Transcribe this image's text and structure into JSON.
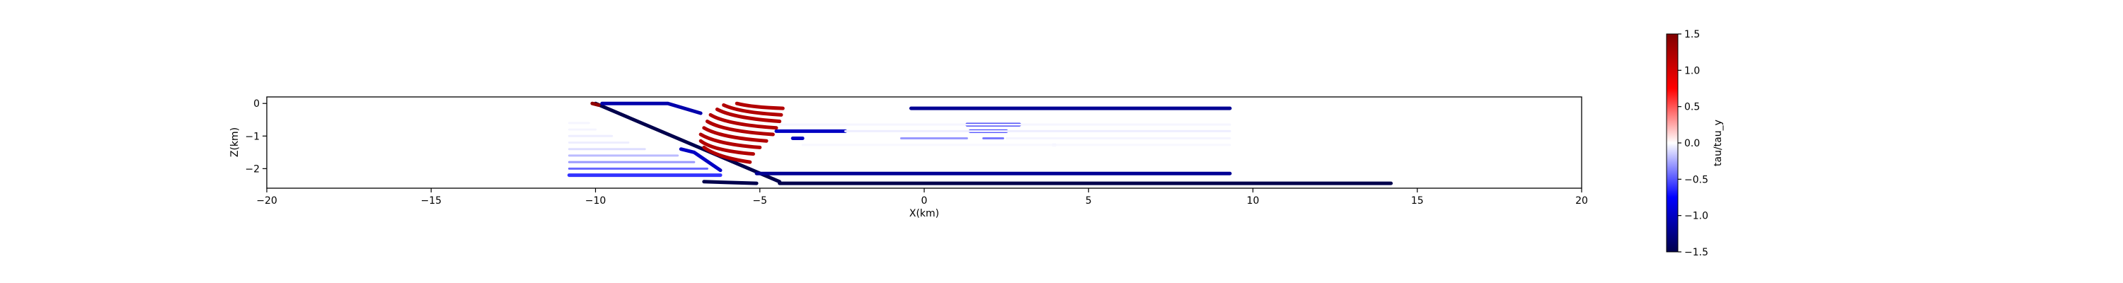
{
  "chart_data": {
    "type": "scatter",
    "xlabel": "X(km)",
    "ylabel": "Z(km)",
    "xlim": [
      -20,
      20
    ],
    "ylim": [
      -2.6,
      0.2
    ],
    "xticks": [
      -20,
      -15,
      -10,
      -5,
      0,
      5,
      10,
      15,
      20
    ],
    "yticks": [
      0,
      -1,
      -2
    ],
    "grid": false,
    "legend": "none",
    "colorbar": {
      "label": "tau/tau_y",
      "range": [
        -1.5,
        1.5
      ],
      "ticks": [
        1.5,
        1.0,
        0.5,
        0.0,
        -0.5,
        -1.0,
        -1.5
      ],
      "colormap": "seismic",
      "colors": [
        "#00004c",
        "#0000ff",
        "#ffffff",
        "#ff0000",
        "#7f0000"
      ]
    },
    "segments": [
      {
        "x": [
          -10.0,
          -4.4
        ],
        "z": [
          0.0,
          -2.4
        ],
        "value": -1.5,
        "shape": "line"
      },
      {
        "x": [
          -4.4,
          14.2
        ],
        "z": [
          -2.45,
          -2.45
        ],
        "value": -1.5,
        "shape": "line"
      },
      {
        "x": [
          -6.7,
          -5.1
        ],
        "z": [
          -2.4,
          -2.45
        ],
        "value": -1.5,
        "shape": "line"
      },
      {
        "x": [
          -10.1,
          -9.9
        ],
        "z": [
          0.0,
          -0.05
        ],
        "value": 1.4,
        "shape": "line"
      },
      {
        "x": [
          -9.8,
          -7.8,
          -6.8
        ],
        "z": [
          0.0,
          0.0,
          -0.3
        ],
        "value": -1.1,
        "shape": "line"
      },
      {
        "x": [
          -7.4,
          -7.0,
          -6.2
        ],
        "z": [
          -1.4,
          -1.5,
          -2.05
        ],
        "value": -1.0,
        "shape": "line"
      },
      {
        "x": [
          -5.1,
          9.3
        ],
        "z": [
          -2.15,
          -2.15
        ],
        "value": -1.2,
        "shape": "line"
      },
      {
        "x": [
          -0.4,
          9.3
        ],
        "z": [
          -0.15,
          -0.15
        ],
        "value": -1.2,
        "shape": "line"
      },
      {
        "x": [
          -4.5,
          -2.4
        ],
        "z": [
          -0.85,
          -0.85
        ],
        "value": -1.0,
        "shape": "line"
      },
      {
        "x": [
          -4.0,
          -3.7
        ],
        "z": [
          -1.07,
          -1.07
        ],
        "value": -1.0,
        "shape": "line"
      },
      {
        "x": [
          1.3,
          2.9
        ],
        "z": [
          -0.65,
          -0.65
        ],
        "value": -0.8,
        "shape": "line"
      },
      {
        "x": [
          1.4,
          2.5
        ],
        "z": [
          -0.85,
          -0.85
        ],
        "value": -0.6,
        "shape": "line"
      },
      {
        "x": [
          -0.7,
          1.3
        ],
        "z": [
          -1.07,
          -1.07
        ],
        "value": -0.3,
        "shape": "line"
      },
      {
        "x": [
          1.8,
          2.4
        ],
        "z": [
          -1.07,
          -1.07
        ],
        "value": -0.4,
        "shape": "line"
      },
      {
        "x": [
          3.9,
          4.0
        ],
        "z": [
          -1.27,
          -1.27
        ],
        "value": -0.2,
        "shape": "line"
      },
      {
        "x": [
          -10.8,
          -7.5
        ],
        "z": [
          -1.6,
          -1.6
        ],
        "value": -0.2,
        "shape": "line"
      },
      {
        "x": [
          -10.8,
          -7.0
        ],
        "z": [
          -1.8,
          -1.8
        ],
        "value": -0.3,
        "shape": "line"
      },
      {
        "x": [
          -10.8,
          -6.6
        ],
        "z": [
          -2.0,
          -2.0
        ],
        "value": -0.45,
        "shape": "line"
      },
      {
        "x": [
          -10.8,
          -6.2
        ],
        "z": [
          -2.2,
          -2.2
        ],
        "value": -0.6,
        "shape": "line"
      },
      {
        "x": [
          -10.8,
          -8.5
        ],
        "z": [
          -1.4,
          -1.4
        ],
        "value": -0.1,
        "shape": "line"
      },
      {
        "x": [
          -10.8,
          -9.0
        ],
        "z": [
          -1.2,
          -1.2
        ],
        "value": -0.05,
        "shape": "line"
      },
      {
        "x": [
          -10.8,
          -9.5
        ],
        "z": [
          -1.0,
          -1.0
        ],
        "value": -0.05,
        "shape": "line"
      },
      {
        "x": [
          -10.8,
          -10.0
        ],
        "z": [
          -0.8,
          -0.8
        ],
        "value": -0.03,
        "shape": "line"
      },
      {
        "x": [
          -10.8,
          -10.2
        ],
        "z": [
          -0.6,
          -0.6
        ],
        "value": -0.03,
        "shape": "line"
      },
      {
        "x": [
          -2.4,
          9.3
        ],
        "z": [
          -0.85,
          -0.85
        ],
        "value": -0.05,
        "shape": "line"
      },
      {
        "x": [
          2.5,
          9.3
        ],
        "z": [
          -1.07,
          -1.07
        ],
        "value": -0.03,
        "shape": "line"
      },
      {
        "x": [
          -3.7,
          9.3
        ],
        "z": [
          -1.27,
          -1.27
        ],
        "value": -0.02,
        "shape": "line"
      },
      {
        "x": [
          -4.4,
          9.3
        ],
        "z": [
          -0.65,
          -0.65
        ],
        "value": -0.03,
        "shape": "line"
      },
      {
        "x": [
          -5.7,
          -5.25,
          -4.3
        ],
        "z": [
          0.0,
          -0.12,
          -0.15
        ],
        "value": 1.2,
        "shape": "arc"
      },
      {
        "x": [
          -6.1,
          -5.6,
          -4.35
        ],
        "z": [
          -0.05,
          -0.28,
          -0.35
        ],
        "value": 1.2,
        "shape": "arc"
      },
      {
        "x": [
          -6.3,
          -5.8,
          -4.4
        ],
        "z": [
          -0.18,
          -0.45,
          -0.55
        ],
        "value": 1.2,
        "shape": "arc"
      },
      {
        "x": [
          -6.5,
          -6.0,
          -4.5
        ],
        "z": [
          -0.35,
          -0.65,
          -0.75
        ],
        "value": 1.2,
        "shape": "arc"
      },
      {
        "x": [
          -6.6,
          -6.1,
          -4.6
        ],
        "z": [
          -0.55,
          -0.85,
          -0.95
        ],
        "value": 1.2,
        "shape": "arc"
      },
      {
        "x": [
          -6.7,
          -6.2,
          -4.8
        ],
        "z": [
          -0.75,
          -1.05,
          -1.15
        ],
        "value": 1.2,
        "shape": "arc"
      },
      {
        "x": [
          -6.8,
          -6.3,
          -5.0
        ],
        "z": [
          -0.95,
          -1.25,
          -1.35
        ],
        "value": 1.2,
        "shape": "arc"
      },
      {
        "x": [
          -6.8,
          -6.4,
          -5.2
        ],
        "z": [
          -1.15,
          -1.45,
          -1.55
        ],
        "value": 1.2,
        "shape": "arc"
      },
      {
        "x": [
          -6.7,
          -6.3,
          -5.3
        ],
        "z": [
          -1.35,
          -1.65,
          -1.8
        ],
        "value": 1.2,
        "shape": "arc"
      }
    ]
  }
}
